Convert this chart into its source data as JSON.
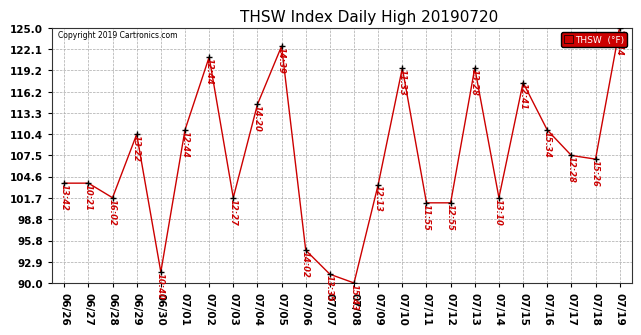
{
  "title": "THSW Index Daily High 20190720",
  "copyright": "Copyright 2019 Cartronics.com",
  "legend_label": "THSW  (°F)",
  "ylim": [
    90.0,
    125.0
  ],
  "yticks": [
    90.0,
    92.9,
    95.8,
    98.8,
    101.7,
    104.6,
    107.5,
    110.4,
    113.3,
    116.2,
    119.2,
    122.1,
    125.0
  ],
  "dates": [
    "06/26",
    "06/27",
    "06/28",
    "06/29",
    "06/30",
    "07/01",
    "07/02",
    "07/03",
    "07/04",
    "07/05",
    "07/06",
    "07/07",
    "07/08",
    "07/09",
    "07/10",
    "07/11",
    "07/12",
    "07/13",
    "07/14",
    "07/15",
    "07/16",
    "07/17",
    "07/18",
    "07/19"
  ],
  "values": [
    103.7,
    103.7,
    101.7,
    110.4,
    91.5,
    111.0,
    121.0,
    101.7,
    114.5,
    122.5,
    94.5,
    91.2,
    90.0,
    103.5,
    119.5,
    101.0,
    101.0,
    119.5,
    101.7,
    117.5,
    111.0,
    107.5,
    107.0,
    125.0
  ],
  "labels": [
    "13:42",
    "10:21",
    "16:02",
    "13:22",
    "10:40",
    "12:44",
    "12:44",
    "12:27",
    "14:20",
    "14:39",
    "14:02",
    "13:35",
    "15:43",
    "12:13",
    "11:33",
    "11:55",
    "12:55",
    "13:28",
    "13:10",
    "12:41",
    "15:34",
    "12:28",
    "15:26",
    "15:44"
  ],
  "line_color": "#cc0000",
  "marker_color": "#000000",
  "label_color": "#cc0000",
  "bg_color": "#ffffff",
  "grid_color": "#aaaaaa",
  "title_fontsize": 11,
  "label_fontsize": 6.0,
  "tick_fontsize": 7.5,
  "legend_bg": "#cc0000",
  "legend_fg": "#ffffff"
}
